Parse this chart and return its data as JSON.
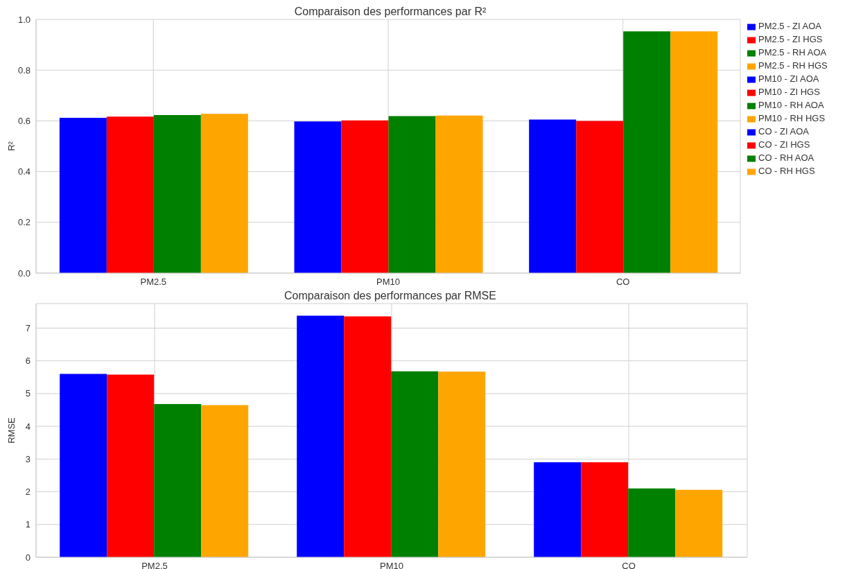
{
  "chart_data": [
    {
      "type": "bar",
      "title": "Comparaison des performances par R²",
      "ylabel": "R²",
      "categories": [
        "PM2.5",
        "PM10",
        "CO"
      ],
      "ylim": [
        0,
        1
      ],
      "yticks": [
        {
          "value": 0,
          "label": "0.0"
        },
        {
          "value": 0.2,
          "label": "0.2"
        },
        {
          "value": 0.4,
          "label": "0.4"
        },
        {
          "value": 0.6,
          "label": "0.6"
        },
        {
          "value": 0.8,
          "label": "0.8"
        },
        {
          "value": 1,
          "label": "1.0"
        }
      ],
      "grid": true,
      "legend": "top right",
      "series": [
        {
          "name": "PM2.5 - ZI AOA",
          "color": "#0000ff",
          "values": [
            0.612,
            null,
            null
          ]
        },
        {
          "name": "PM2.5 - ZI HGS",
          "color": "#ff0000",
          "values": [
            0.617,
            null,
            null
          ]
        },
        {
          "name": "PM2.5 - RH AOA",
          "color": "#008000",
          "values": [
            0.623,
            null,
            null
          ]
        },
        {
          "name": "PM2.5 - RH HGS",
          "color": "#ffa500",
          "values": [
            0.628,
            null,
            null
          ]
        },
        {
          "name": "PM10 - ZI AOA",
          "color": "#0000ff",
          "values": [
            null,
            0.598,
            null
          ]
        },
        {
          "name": "PM10 - ZI HGS",
          "color": "#ff0000",
          "values": [
            null,
            0.602,
            null
          ]
        },
        {
          "name": "PM10 - RH AOA",
          "color": "#008000",
          "values": [
            null,
            0.619,
            null
          ]
        },
        {
          "name": "PM10 - RH HGS",
          "color": "#ffa500",
          "values": [
            null,
            0.621,
            null
          ]
        },
        {
          "name": "CO - ZI AOA",
          "color": "#0000ff",
          "values": [
            null,
            null,
            0.605
          ]
        },
        {
          "name": "CO - ZI HGS",
          "color": "#ff0000",
          "values": [
            null,
            null,
            0.6
          ]
        },
        {
          "name": "CO - RH AOA",
          "color": "#008000",
          "values": [
            null,
            null,
            0.953
          ]
        },
        {
          "name": "CO - RH HGS",
          "color": "#ffa500",
          "values": [
            null,
            null,
            0.953
          ]
        }
      ]
    },
    {
      "type": "bar",
      "title": "Comparaison des performances par RMSE",
      "ylabel": "RMSE",
      "categories": [
        "PM2.5",
        "PM10",
        "CO"
      ],
      "ylim": [
        0,
        7.75
      ],
      "yticks": [
        0,
        1,
        2,
        3,
        4,
        5,
        6,
        7
      ],
      "grid": true,
      "series": [
        {
          "color": "#0000ff",
          "values": [
            5.6,
            null,
            null
          ]
        },
        {
          "color": "#ff0000",
          "values": [
            5.58,
            null,
            null
          ]
        },
        {
          "color": "#008000",
          "values": [
            4.68,
            null,
            null
          ]
        },
        {
          "color": "#ffa500",
          "values": [
            4.65,
            null,
            null
          ]
        },
        {
          "color": "#0000ff",
          "values": [
            null,
            7.38,
            null
          ]
        },
        {
          "color": "#ff0000",
          "values": [
            null,
            7.36,
            null
          ]
        },
        {
          "color": "#008000",
          "values": [
            null,
            5.68,
            null
          ]
        },
        {
          "color": "#ffa500",
          "values": [
            null,
            5.67,
            null
          ]
        },
        {
          "color": "#0000ff",
          "values": [
            null,
            null,
            2.9
          ]
        },
        {
          "color": "#ff0000",
          "values": [
            null,
            null,
            2.9
          ]
        },
        {
          "color": "#008000",
          "values": [
            null,
            null,
            2.1
          ]
        },
        {
          "color": "#ffa500",
          "values": [
            null,
            null,
            2.06
          ]
        }
      ]
    }
  ]
}
